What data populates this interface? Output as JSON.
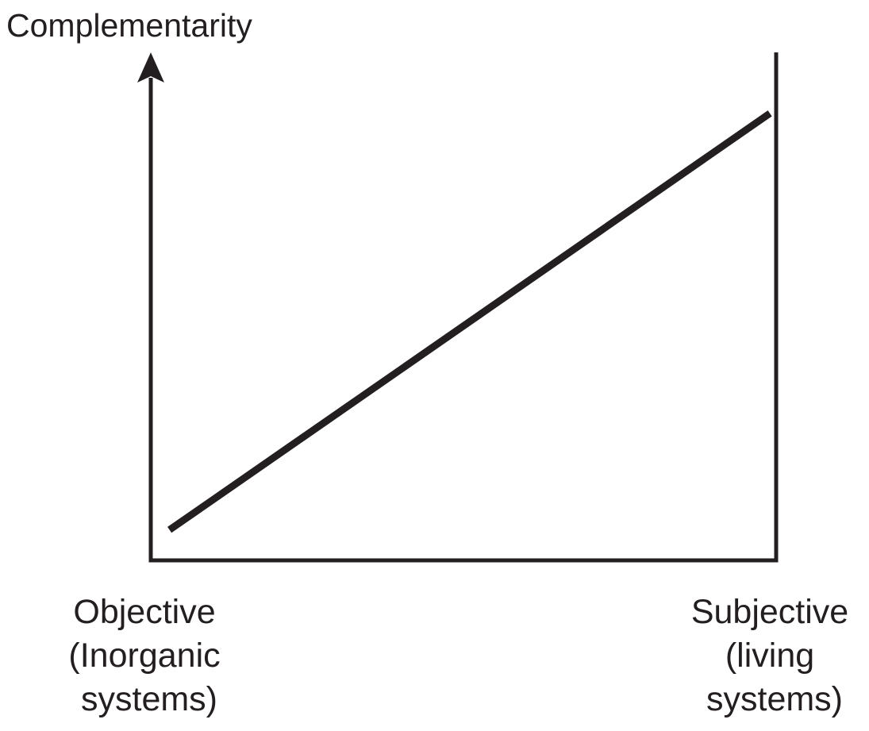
{
  "chart_data": {
    "type": "line",
    "title": "",
    "ylabel": "Complementarity",
    "xlabel": "",
    "x_categories": [
      {
        "lines": [
          "Objective",
          "(Inorganic",
          "systems)"
        ]
      },
      {
        "lines": [
          "Subjective",
          "(living",
          "systems)"
        ]
      }
    ],
    "x": [
      0.03,
      0.99
    ],
    "y": [
      0.06,
      0.88
    ],
    "xlim": [
      0,
      1
    ],
    "ylim": [
      0,
      1
    ],
    "grid": false,
    "legend": "none",
    "y_axis_arrow": true,
    "colors": {
      "axis": "#231f20",
      "line": "#231f20"
    }
  }
}
